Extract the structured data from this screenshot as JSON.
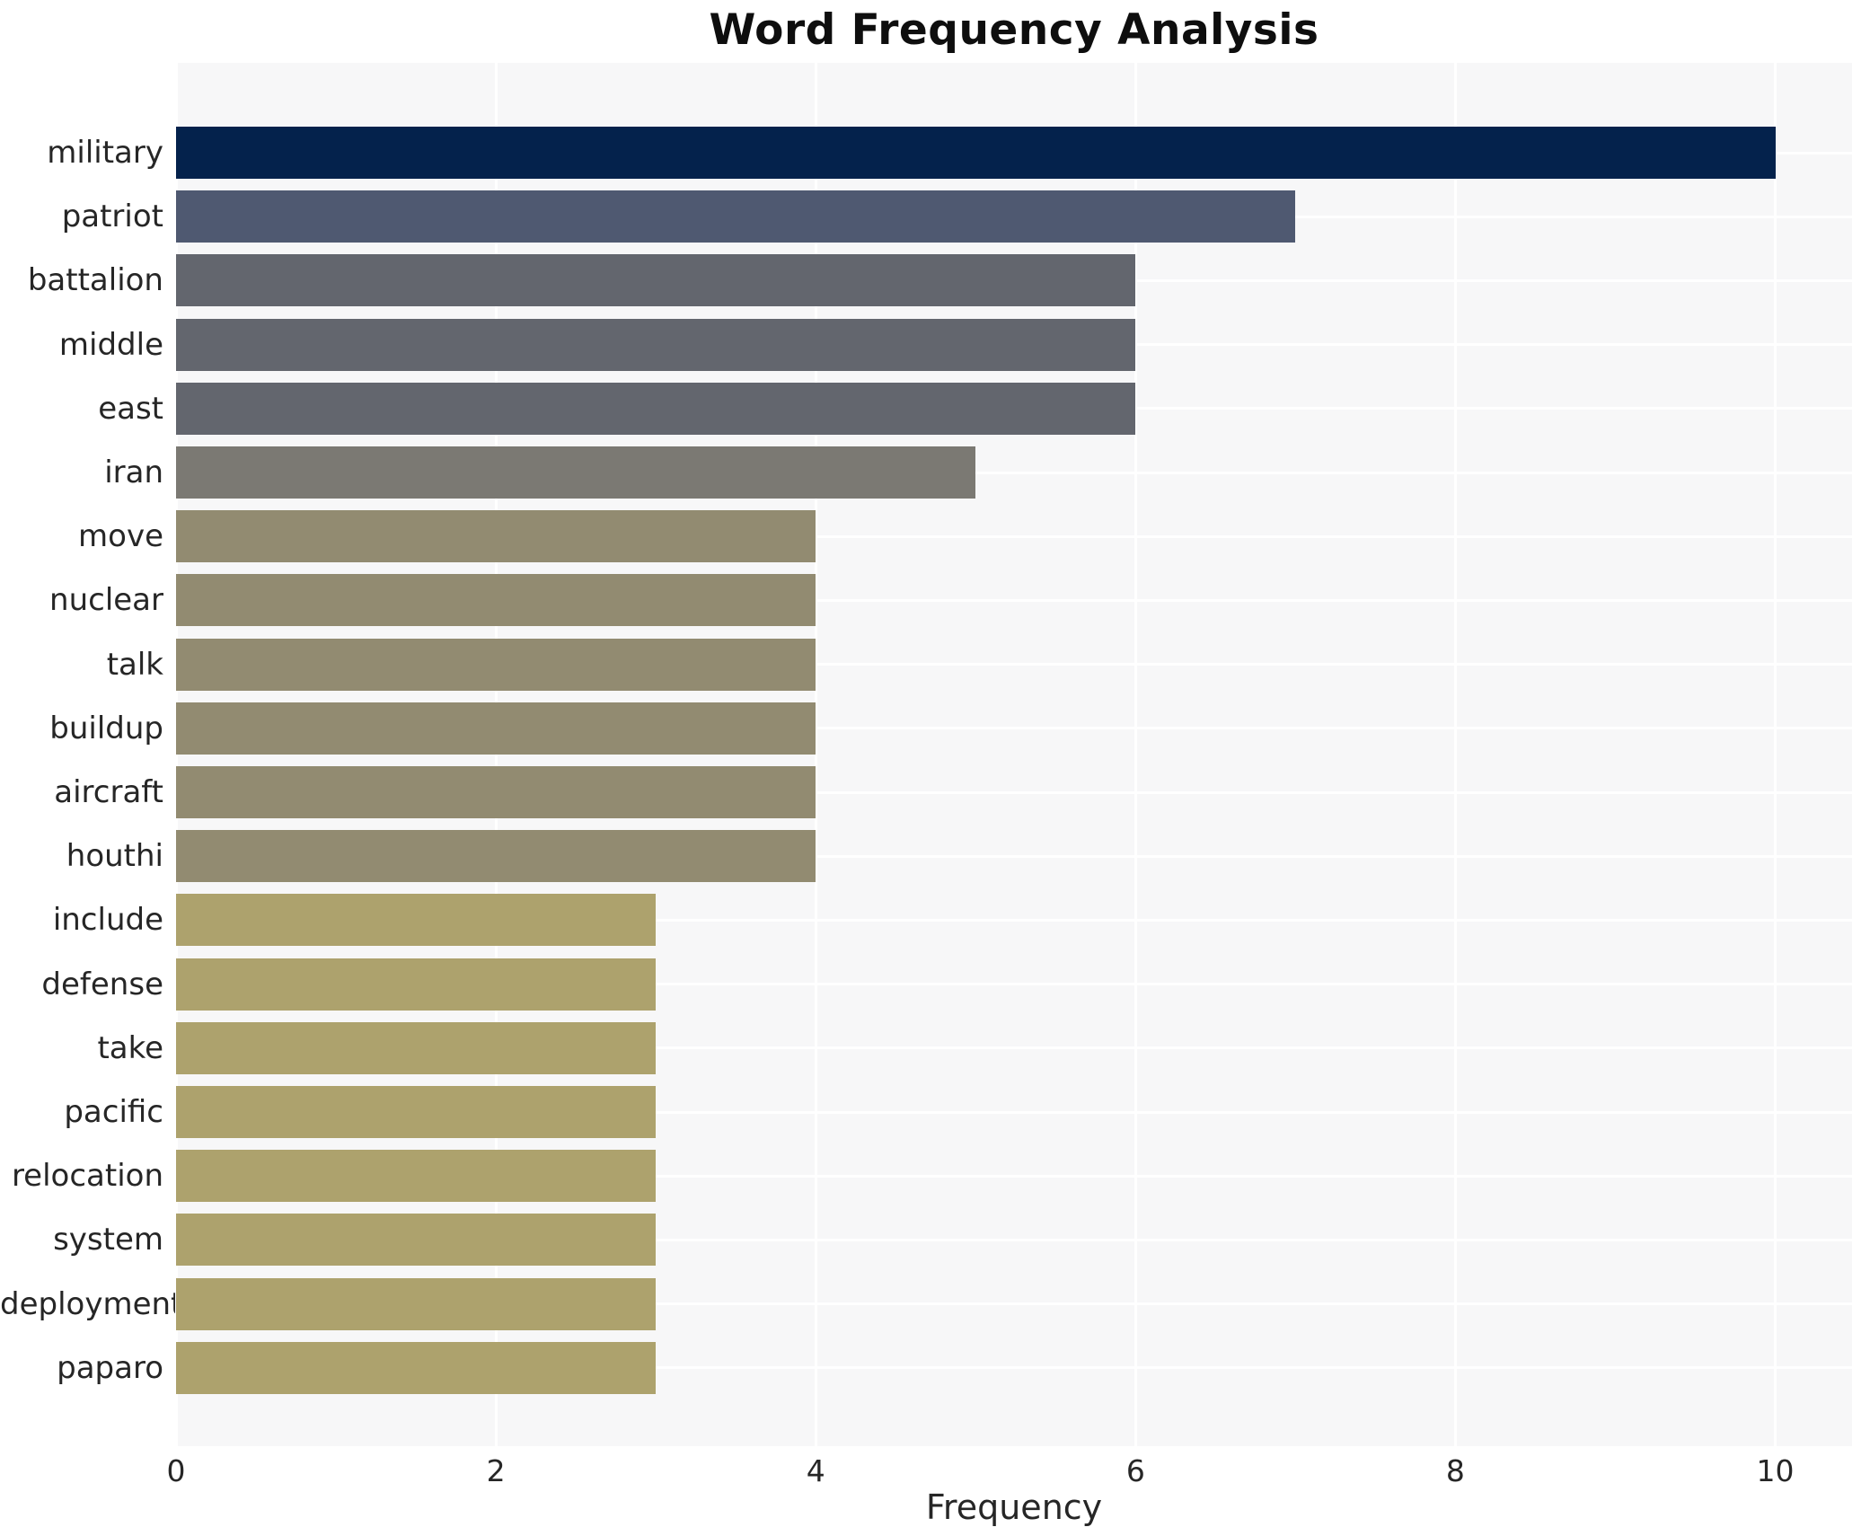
{
  "title": "Word Frequency Analysis",
  "chart_data": {
    "type": "bar",
    "orientation": "horizontal",
    "title": "Word Frequency Analysis",
    "xlabel": "Frequency",
    "ylabel": "",
    "categories": [
      "military",
      "patriot",
      "battalion",
      "middle",
      "east",
      "iran",
      "move",
      "nuclear",
      "talk",
      "buildup",
      "aircraft",
      "houthi",
      "include",
      "defense",
      "take",
      "pacific",
      "relocation",
      "system",
      "deployment",
      "paparo"
    ],
    "values": [
      10,
      7,
      6,
      6,
      6,
      5,
      4,
      4,
      4,
      4,
      4,
      4,
      3,
      3,
      3,
      3,
      3,
      3,
      3,
      3
    ],
    "bar_colors": [
      "#04224c",
      "#4f5971",
      "#63666e",
      "#63666e",
      "#63666e",
      "#7b7973",
      "#928b71",
      "#928b71",
      "#928b71",
      "#928b71",
      "#928b71",
      "#928b71",
      "#ada26d",
      "#ada26d",
      "#ada26d",
      "#ada26d",
      "#ada26d",
      "#ada26d",
      "#ada26d",
      "#ada26d"
    ],
    "xticks": [
      0,
      2,
      4,
      6,
      8,
      10
    ],
    "xtick_labels": [
      "0",
      "2",
      "4",
      "6",
      "8",
      "10"
    ],
    "xlim": [
      0,
      10.48
    ],
    "grid": true,
    "legend": false,
    "plot_background": "#f7f7f8",
    "grid_color": "#ffffff",
    "text_color": "#262626"
  }
}
